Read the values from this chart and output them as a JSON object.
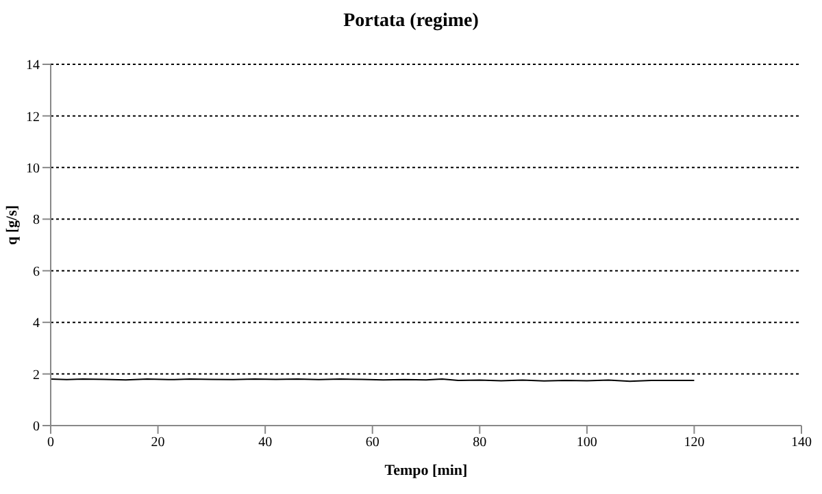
{
  "chart_data": {
    "type": "line",
    "title": "Portata (regime)",
    "xlabel": "Tempo [min]",
    "ylabel": "q [g/s]",
    "series": [
      {
        "color": "#000000",
        "x": [
          0,
          3,
          6,
          10,
          14,
          18,
          22,
          26,
          30,
          34,
          38,
          42,
          46,
          50,
          54,
          58,
          62,
          66,
          70,
          73,
          76,
          80,
          84,
          88,
          92,
          96,
          100,
          104,
          108,
          112,
          116,
          120
        ],
        "values": [
          1.8,
          1.78,
          1.8,
          1.79,
          1.77,
          1.8,
          1.78,
          1.8,
          1.79,
          1.78,
          1.8,
          1.79,
          1.8,
          1.78,
          1.8,
          1.79,
          1.77,
          1.78,
          1.77,
          1.8,
          1.75,
          1.76,
          1.74,
          1.76,
          1.73,
          1.75,
          1.74,
          1.76,
          1.72,
          1.75,
          1.75,
          1.75
        ]
      }
    ],
    "xlim": [
      0,
      140
    ],
    "xticks": [
      0,
      20,
      40,
      60,
      80,
      100,
      120,
      140
    ],
    "ylim": [
      0,
      14
    ],
    "yticks": [
      0,
      2,
      4,
      6,
      8,
      10,
      12,
      14
    ],
    "grid": "y",
    "marker": "none",
    "line_style": "solid"
  }
}
